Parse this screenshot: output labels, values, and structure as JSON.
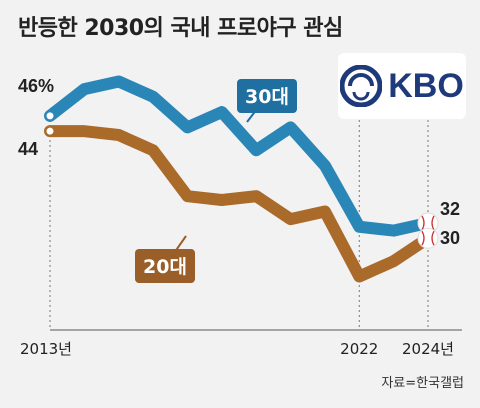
{
  "title": "반등한 2030의 국내 프로야구 관심",
  "source": "자료=한국갤럽",
  "logo": {
    "text": "KBO",
    "icon": "kbo-emblem-icon"
  },
  "colors": {
    "series_30s": "#2b86b8",
    "series_20s": "#a96a2a",
    "label_30s_bg": "#1f6fa0",
    "label_20s_bg": "#9a5f28"
  },
  "chart_data": {
    "type": "line",
    "x": [
      2013,
      2014,
      2015,
      2016,
      2017,
      2018,
      2019,
      2020,
      2021,
      2022,
      2023,
      2024
    ],
    "x_tick_labels": [
      "2013년",
      "2022",
      "2024년"
    ],
    "x_tick_values": [
      2013,
      2022,
      2024
    ],
    "ylim": [
      18,
      52
    ],
    "grid": false,
    "series": [
      {
        "name": "30대",
        "values": [
          46,
          49.5,
          50.5,
          48.5,
          44.5,
          46.5,
          41.5,
          44.5,
          39.5,
          31.5,
          31,
          32
        ],
        "end_label": "32",
        "start_label": "46%"
      },
      {
        "name": "20대",
        "values": [
          44,
          44,
          43.5,
          41.5,
          35.5,
          35,
          35.5,
          32.5,
          33.5,
          25,
          27,
          30
        ],
        "end_label": "30",
        "start_label": "44"
      }
    ]
  }
}
